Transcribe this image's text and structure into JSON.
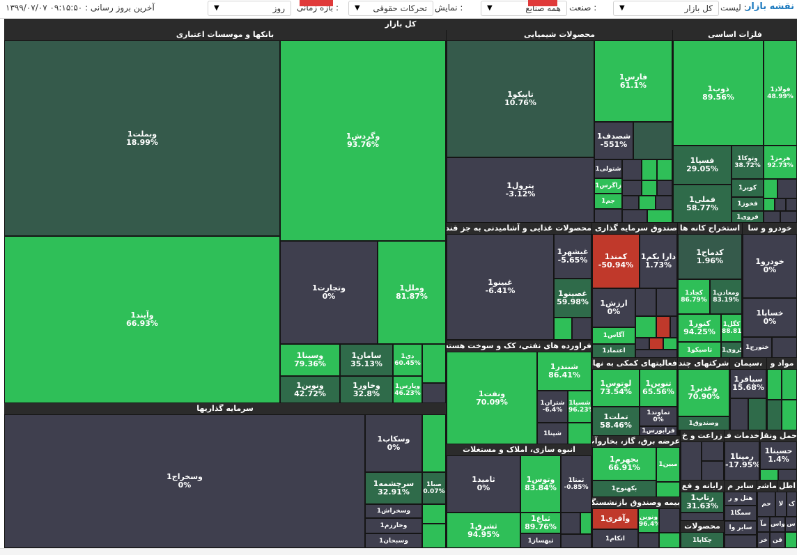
{
  "topbar": {
    "brand": "نقشه بازار",
    "list_label": "لیست :",
    "list_value": "کل بازار",
    "industry_label": "صنعت :",
    "industry_value": "همه صنایع",
    "display_label": "نمایش :",
    "display_value": "تحرکات حقوقی",
    "period_label": "بازه زمانی :",
    "period_value": "روز",
    "last_update": "آخرین بروز رسانی : ۰۹:۱۵:۵۰ ۱۳۹۹/۰۷/۰۷"
  },
  "colors": {
    "dark": "#3f3f4e",
    "mid": "#2f6b4a",
    "green": "#2fbf58",
    "red": "#c0392b",
    "deep": "#355a4b"
  },
  "map": {
    "title": "کل بازار",
    "sectors": {
      "banks": "بانکها و موسسات اعتباری",
      "chemical": "محصولات شیمیایی",
      "metals": "فلزات اساسی",
      "food": "محصولات غذایی و آشامیدنی به جز قند",
      "fund": "صندوق سرمایه گذاری قا",
      "mining": "استخراج کانه ها",
      "auto": "خودرو و سا",
      "investment": "سرمایه گذاریها",
      "refinery": "فراورده های نفتی، کک و سوخت هسته ای",
      "support": "فعالیتهای کمکی به نهاده",
      "multi": "شرکتهای چند",
      "cement": "،سیمان",
      "materials": "مواد و",
      "construction": "انبوه سازی، املاک و مستغلات",
      "utilities": "عرضه برق، گاز، بخاروآب",
      "agri": "زراعت و خ",
      "services": "خدمات ف",
      "transport": "حمل ونقل",
      "insurance": "بیمه وصندوق بازنشستگی",
      "computer": "رایانه و فع",
      "other": "سایر م",
      "machines": "ماشی",
      "telecom": "اطل",
      "products": "محصولات"
    },
    "cells": [
      {
        "name": "وبملت1",
        "pct": "18.99%"
      },
      {
        "name": "وگردش1",
        "pct": "93.76%"
      },
      {
        "name": "وآیند1",
        "pct": "66.93%"
      },
      {
        "name": "وتجارت1",
        "pct": "0%"
      },
      {
        "name": "وملل1",
        "pct": "81.87%"
      },
      {
        "name": "وسینا1",
        "pct": "79.36%"
      },
      {
        "name": "سامان1",
        "pct": "35.13%"
      },
      {
        "name": "دی1",
        "pct": "60.45%"
      },
      {
        "name": "ونوین1",
        "pct": "42.72%"
      },
      {
        "name": "وخاور1",
        "pct": "32.8%"
      },
      {
        "name": "وپارس1",
        "pct": "46.23%"
      },
      {
        "name": "تاپیکو1",
        "pct": "10.76%"
      },
      {
        "name": "پترول1",
        "pct": "-3.12%"
      },
      {
        "name": "فارس1",
        "pct": "61.1%"
      },
      {
        "name": "شصدف1",
        "pct": "-551%"
      },
      {
        "name": "شتولی1",
        "pct": ""
      },
      {
        "name": "زاگرس1",
        "pct": ""
      },
      {
        "name": "جم1",
        "pct": ""
      },
      {
        "name": "ذوب1",
        "pct": "89.56%"
      },
      {
        "name": "فولاد1",
        "pct": "48.99%"
      },
      {
        "name": "فسپا1",
        "pct": "29.05%"
      },
      {
        "name": "وتوکا1",
        "pct": "38.72%"
      },
      {
        "name": "هرمز1",
        "pct": "92.73%"
      },
      {
        "name": "کویر1",
        "pct": ""
      },
      {
        "name": "فملی1",
        "pct": "58.77%"
      },
      {
        "name": "فخوز1",
        "pct": ""
      },
      {
        "name": "فروی1",
        "pct": ""
      },
      {
        "name": "غبینو1",
        "pct": "-6.41%"
      },
      {
        "name": "غبشهر1",
        "pct": "-5.65%"
      },
      {
        "name": "غصینو1",
        "pct": "59.98%"
      },
      {
        "name": "کمند1",
        "pct": "-50.94%"
      },
      {
        "name": "دارا یکم1",
        "pct": "1.73%"
      },
      {
        "name": "ارزش1",
        "pct": "0%"
      },
      {
        "name": "آگاس1",
        "pct": ""
      },
      {
        "name": "اعتماد1",
        "pct": ""
      },
      {
        "name": "کدماح1",
        "pct": "1.96%"
      },
      {
        "name": "کچاد1",
        "pct": "86.79%"
      },
      {
        "name": "ومعادن1",
        "pct": "83.19%"
      },
      {
        "name": "کنور1",
        "pct": "94.25%"
      },
      {
        "name": "کگل1",
        "pct": "88.81%"
      },
      {
        "name": "تاصیکو1",
        "pct": ""
      },
      {
        "name": "کروی1",
        "pct": ""
      },
      {
        "name": "خودرو1",
        "pct": "0%"
      },
      {
        "name": "خساپا1",
        "pct": "0%"
      },
      {
        "name": "ختورج1",
        "pct": ""
      },
      {
        "name": "وسخراج1",
        "pct": "0%"
      },
      {
        "name": "وسکاب1",
        "pct": "0%"
      },
      {
        "name": "سرچشمه1",
        "pct": "32.91%"
      },
      {
        "name": "صبا1",
        "pct": "0.07%"
      },
      {
        "name": "وسخراش1",
        "pct": ""
      },
      {
        "name": "وخارزم1",
        "pct": ""
      },
      {
        "name": "وسبحان1",
        "pct": ""
      },
      {
        "name": "ونفت1",
        "pct": "70.09%"
      },
      {
        "name": "شبندر1",
        "pct": "86.41%"
      },
      {
        "name": "شتران1",
        "pct": "-6.4%"
      },
      {
        "name": "شسپا1",
        "pct": "96.23%"
      },
      {
        "name": "شپنا1",
        "pct": ""
      },
      {
        "name": "لوتوس1",
        "pct": "73.54%"
      },
      {
        "name": "تنوین1",
        "pct": "65.56%"
      },
      {
        "name": "تملت1",
        "pct": "58.46%"
      },
      {
        "name": "تماوند1",
        "pct": "0%"
      },
      {
        "name": "فرابورس1",
        "pct": ""
      },
      {
        "name": "وغدیر1",
        "pct": "70.90%"
      },
      {
        "name": "وصندوق1",
        "pct": ""
      },
      {
        "name": "سپاقر1",
        "pct": "15.68%"
      },
      {
        "name": "ثامید1",
        "pct": "0%"
      },
      {
        "name": "وتوس1",
        "pct": "83.84%"
      },
      {
        "name": "ثمتا1",
        "pct": "-0.85%"
      },
      {
        "name": "ثشرق1",
        "pct": "94.95%"
      },
      {
        "name": "ثباغ1",
        "pct": "89.76%"
      },
      {
        "name": "ثبهساز1",
        "pct": ""
      },
      {
        "name": "بجهرم1",
        "pct": "66.91%"
      },
      {
        "name": "بکهنوج1",
        "pct": ""
      },
      {
        "name": "مبین1",
        "pct": ""
      },
      {
        "name": "رمپنا1",
        "pct": "-17.95%"
      },
      {
        "name": "حسینا1",
        "pct": "1.4%"
      },
      {
        "name": "رتاپ1",
        "pct": "31.63%"
      },
      {
        "name": "هتل و ر",
        "pct": ""
      },
      {
        "name": "سمگا1",
        "pct": ""
      },
      {
        "name": "سایر وا",
        "pct": ""
      },
      {
        "name": "وآفری1",
        "pct": ""
      },
      {
        "name": "اتکام1",
        "pct": ""
      },
      {
        "name": "ونوین",
        "pct": "96.4%"
      },
      {
        "name": "چکاپا1",
        "pct": ""
      },
      {
        "name": "حم",
        "pct": ""
      },
      {
        "name": "لا",
        "pct": ""
      },
      {
        "name": "ک",
        "pct": ""
      },
      {
        "name": "مآ",
        "pct": ""
      },
      {
        "name": "واس",
        "pct": ""
      },
      {
        "name": "خر",
        "pct": ""
      },
      {
        "name": "س",
        "pct": ""
      },
      {
        "name": "قن",
        "pct": ""
      }
    ]
  }
}
